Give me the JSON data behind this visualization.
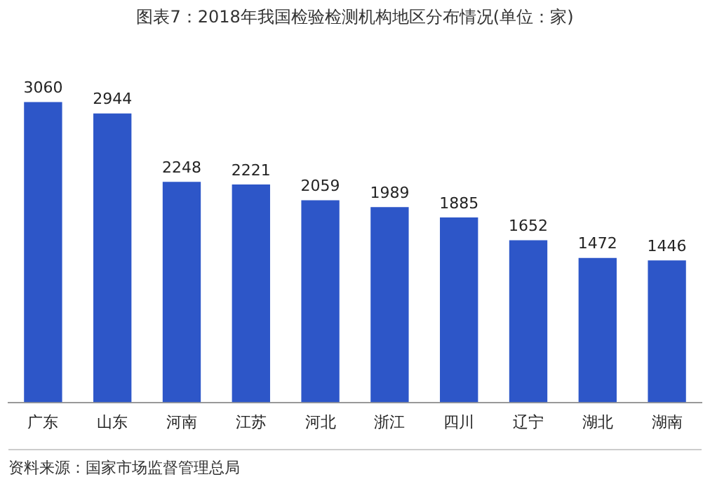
{
  "chart_data": {
    "type": "bar",
    "title": "图表7：2018年我国检验检测机构地区分布情况(单位：家)",
    "categories": [
      "广东",
      "山东",
      "河南",
      "江苏",
      "河北",
      "浙江",
      "四川",
      "辽宁",
      "湖北",
      "湖南"
    ],
    "values": [
      3060,
      2944,
      2248,
      2221,
      2059,
      1989,
      1885,
      1652,
      1472,
      1446
    ],
    "color": "#2d56c8",
    "data_labels": true,
    "grid": false,
    "legend": false,
    "annotations": [
      "资料来源：国家市场监督管理总局"
    ]
  }
}
